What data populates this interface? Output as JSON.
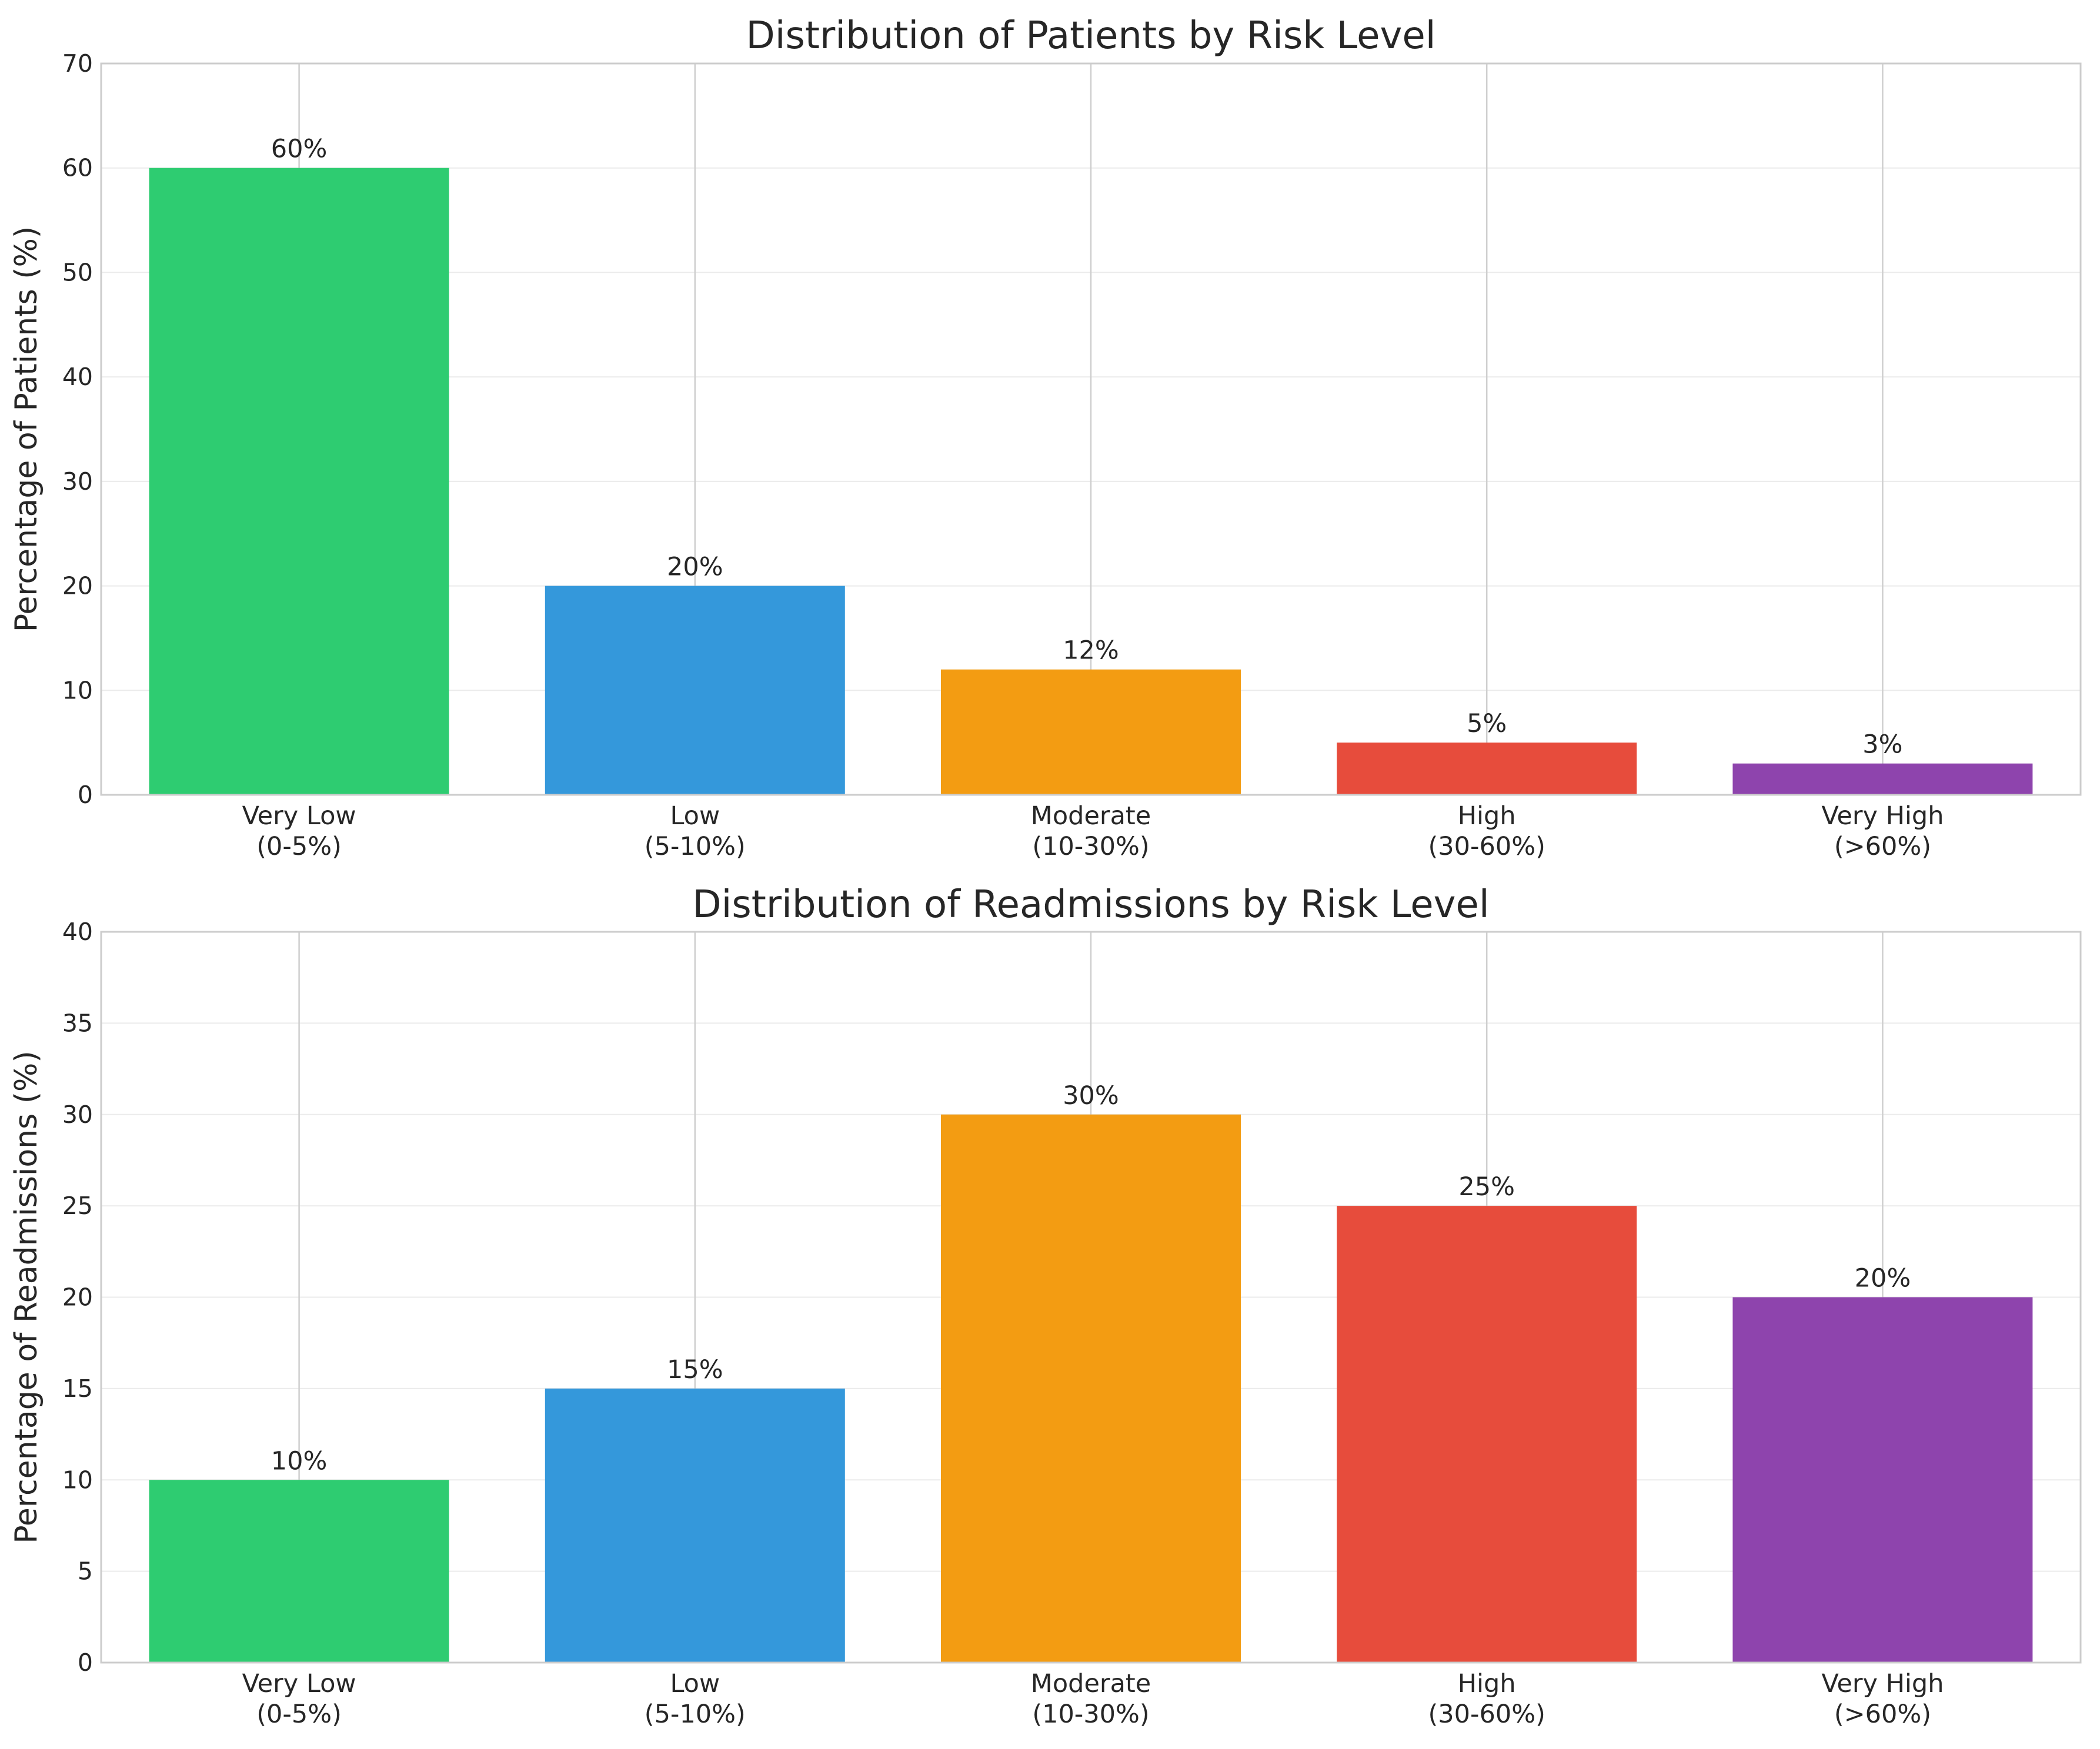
{
  "chart_data": [
    {
      "type": "bar",
      "title": "Distribution of Patients by Risk Level",
      "xlabel": "",
      "ylabel": "Percentage of Patients (%)",
      "ylim": [
        0,
        70
      ],
      "yticks": [
        "0",
        "10",
        "20",
        "30",
        "40",
        "50",
        "60",
        "70"
      ],
      "categories": [
        [
          "Very Low",
          "(0-5%)"
        ],
        [
          "Low",
          "(5-10%)"
        ],
        [
          "Moderate",
          "(10-30%)"
        ],
        [
          "High",
          "(30-60%)"
        ],
        [
          "Very High",
          "(>60%)"
        ]
      ],
      "values": [
        60,
        20,
        12,
        5,
        3
      ],
      "data_labels": [
        "60%",
        "20%",
        "12%",
        "5%",
        "3%"
      ],
      "colors": [
        "#2ecc71",
        "#3498db",
        "#f39c12",
        "#e74c3c",
        "#8e44ad"
      ],
      "grid": true,
      "legend": "none"
    },
    {
      "type": "bar",
      "title": "Distribution of Readmissions by Risk Level",
      "xlabel": "",
      "ylabel": "Percentage of Readmissions (%)",
      "ylim": [
        0,
        40
      ],
      "yticks": [
        "0",
        "5",
        "10",
        "15",
        "20",
        "25",
        "30",
        "35",
        "40"
      ],
      "categories": [
        [
          "Very Low",
          "(0-5%)"
        ],
        [
          "Low",
          "(5-10%)"
        ],
        [
          "Moderate",
          "(10-30%)"
        ],
        [
          "High",
          "(30-60%)"
        ],
        [
          "Very High",
          "(>60%)"
        ]
      ],
      "values": [
        10,
        15,
        30,
        25,
        20
      ],
      "data_labels": [
        "10%",
        "15%",
        "30%",
        "25%",
        "20%"
      ],
      "colors": [
        "#2ecc71",
        "#3498db",
        "#f39c12",
        "#e74c3c",
        "#8e44ad"
      ],
      "grid": true,
      "legend": "none"
    }
  ]
}
